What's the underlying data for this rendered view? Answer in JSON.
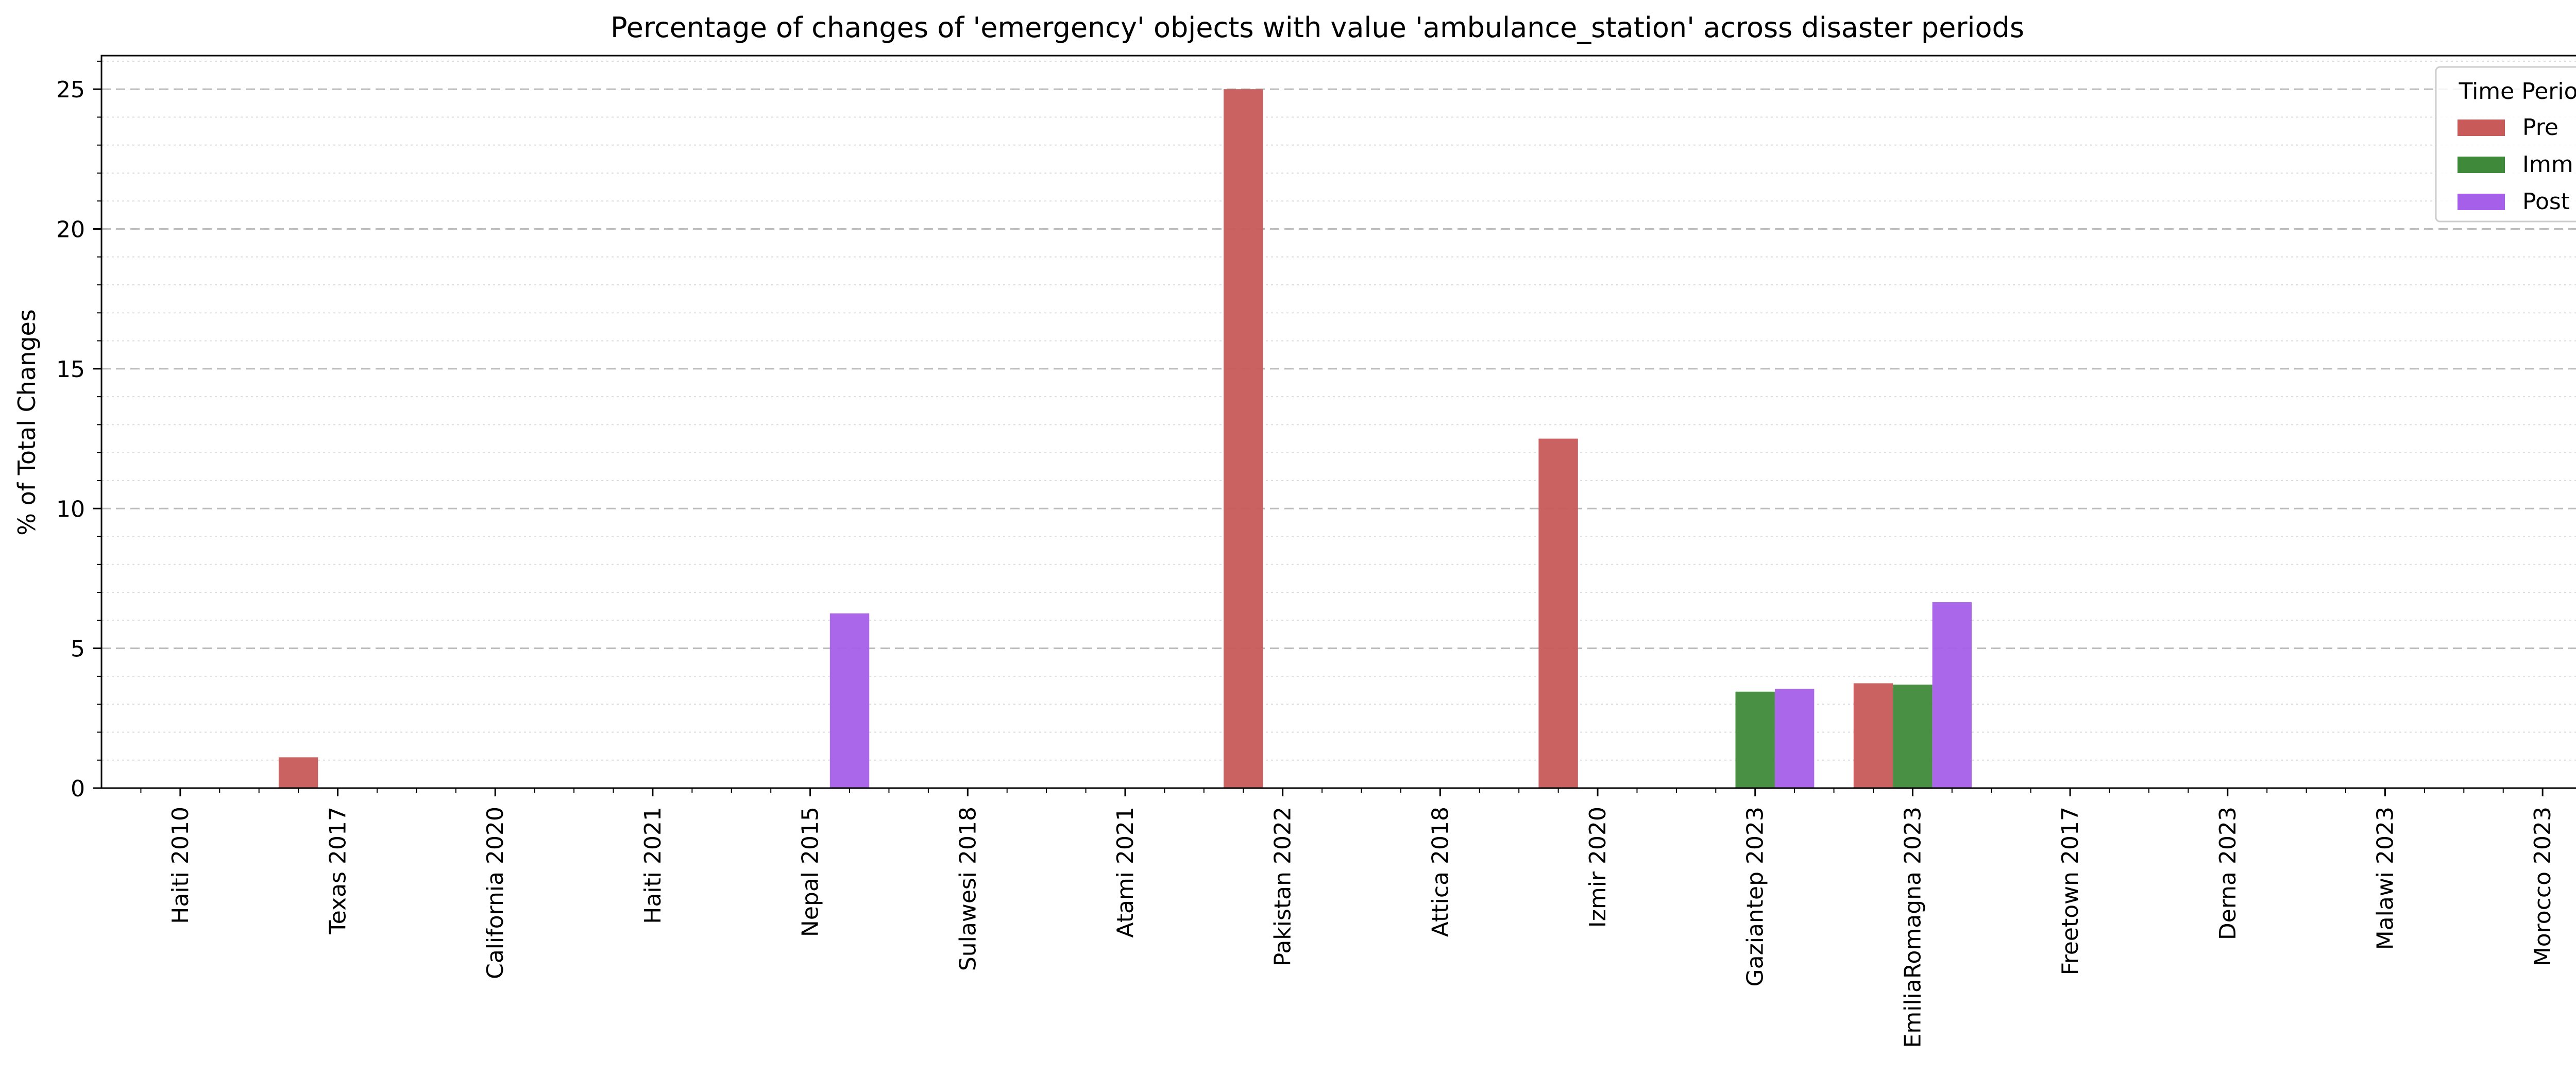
{
  "chart_data": {
    "type": "bar",
    "title": "Percentage of changes of 'emergency' objects with value 'ambulance_station' across disaster periods",
    "xlabel": "",
    "ylabel": "% of Total Changes",
    "ylim": [
      0,
      26.2
    ],
    "yticks": [
      0,
      5,
      10,
      15,
      20,
      25
    ],
    "grid": true,
    "legend": {
      "title": "Time Period",
      "placement": "top-right"
    },
    "categories": [
      "Haiti 2010",
      "Texas 2017",
      "California 2020",
      "Haiti 2021",
      "Nepal 2015",
      "Sulawesi 2018",
      "Atami 2021",
      "Pakistan 2022",
      "Attica 2018",
      "Izmir 2020",
      "Gaziantep 2023",
      "EmiliaRomagna 2023",
      "Freetown 2017",
      "Derna 2023",
      "Malawi 2023",
      "Morocco 2023"
    ],
    "series": [
      {
        "name": "Pre",
        "color": "#c85a5a",
        "values": [
          0,
          1.1,
          0,
          0,
          0,
          0,
          0,
          25.0,
          0,
          12.5,
          0,
          3.75,
          0,
          0,
          0,
          0
        ]
      },
      {
        "name": "Imm",
        "color": "#3f8a3a",
        "values": [
          0,
          0,
          0,
          0,
          0,
          0,
          0,
          0,
          0,
          0,
          3.45,
          3.7,
          0,
          0,
          0,
          0
        ]
      },
      {
        "name": "Post",
        "color": "#a55fe8",
        "values": [
          0,
          0,
          0,
          0,
          6.25,
          0,
          0,
          0,
          0,
          0,
          3.55,
          6.65,
          0,
          0,
          0,
          0
        ]
      }
    ]
  }
}
